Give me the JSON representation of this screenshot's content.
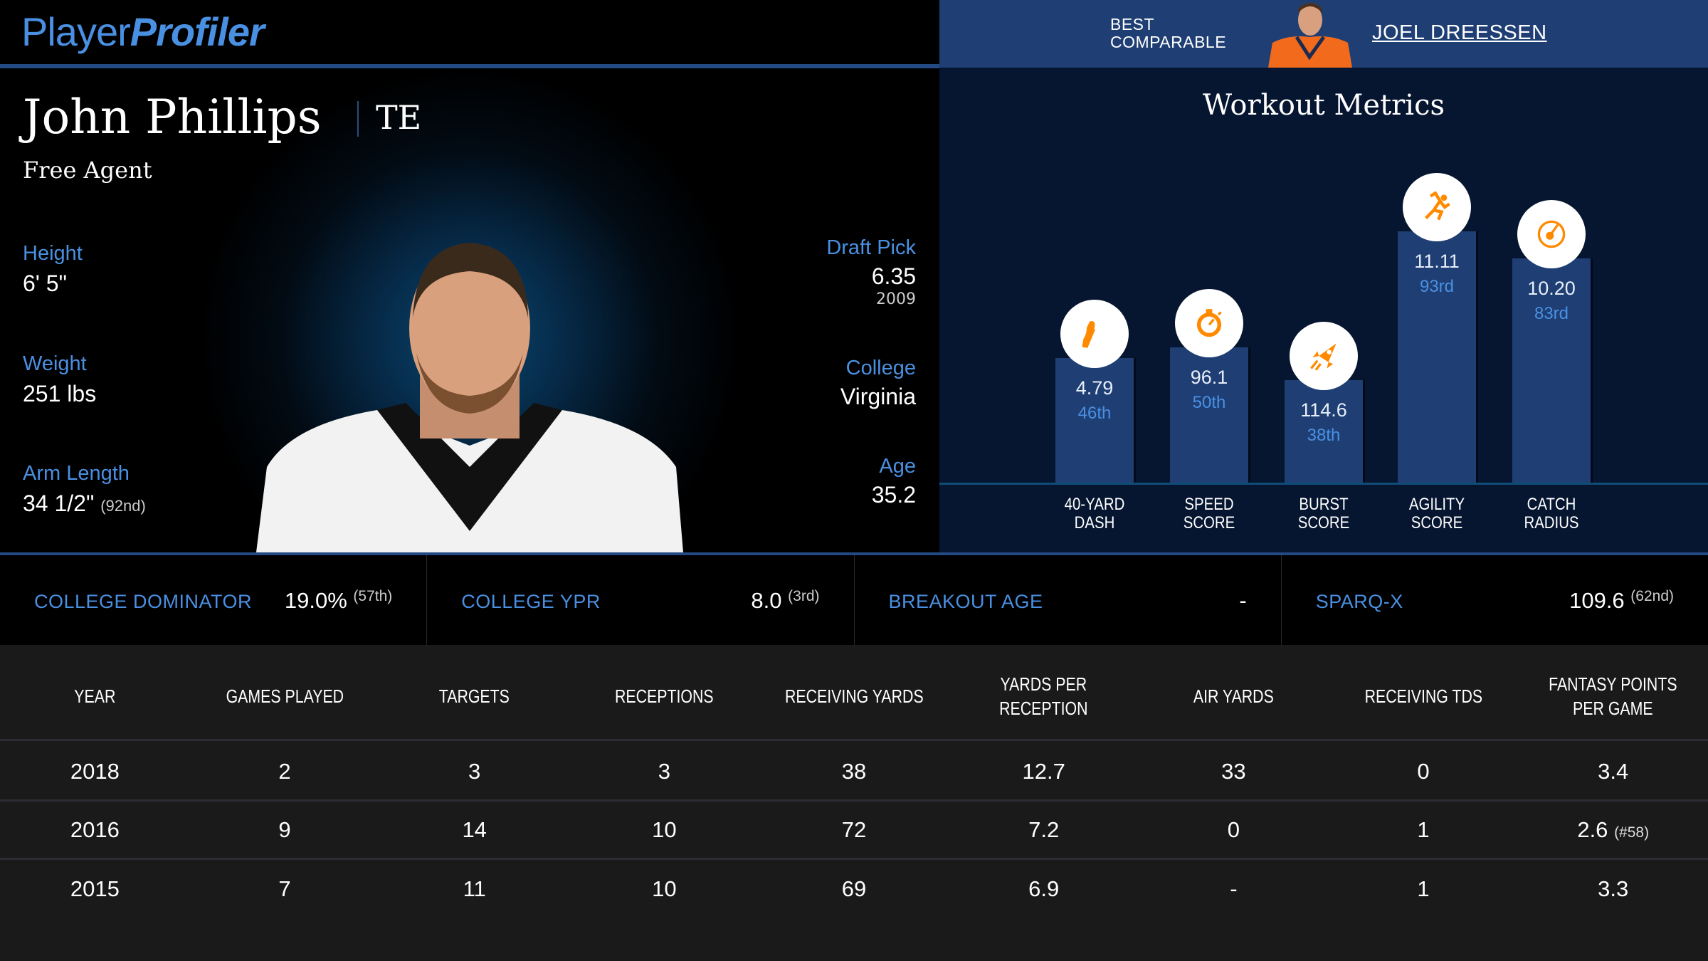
{
  "logo": {
    "part1": "Player",
    "part2": "Profiler"
  },
  "comparable": {
    "label_line1": "BEST",
    "label_line2": "COMPARABLE",
    "name": "JOEL DREESSEN"
  },
  "player": {
    "name": "John Phillips",
    "position": "TE",
    "team": "Free Agent"
  },
  "left_attrs": [
    {
      "label": "Height",
      "value": "6' 5\"",
      "extra": ""
    },
    {
      "label": "Weight",
      "value": "251 lbs",
      "extra": ""
    },
    {
      "label": "Arm Length",
      "value": "34 1/2\"",
      "extra": "(92nd)"
    }
  ],
  "right_attrs": [
    {
      "label": "Draft Pick",
      "value": "6.35",
      "extra": "2009"
    },
    {
      "label": "College",
      "value": "Virginia",
      "extra": ""
    },
    {
      "label": "Age",
      "value": "35.2",
      "extra": ""
    }
  ],
  "workout": {
    "title": "Workout Metrics",
    "accent": "#ff8a00",
    "metrics": [
      {
        "label1": "40-YARD",
        "label2": "DASH",
        "value": "4.79",
        "pct_label": "46th",
        "percentile": 46,
        "icon": "shoe-icon"
      },
      {
        "label1": "SPEED",
        "label2": "SCORE",
        "value": "96.1",
        "pct_label": "50th",
        "percentile": 50,
        "icon": "stopwatch-icon"
      },
      {
        "label1": "BURST",
        "label2": "SCORE",
        "value": "114.6",
        "pct_label": "38th",
        "percentile": 38,
        "icon": "rocket-icon"
      },
      {
        "label1": "AGILITY",
        "label2": "SCORE",
        "value": "11.11",
        "pct_label": "93rd",
        "percentile": 93,
        "icon": "runner-icon"
      },
      {
        "label1": "CATCH",
        "label2": "RADIUS",
        "value": "10.20",
        "pct_label": "83rd",
        "percentile": 83,
        "icon": "target-icon"
      }
    ]
  },
  "stats": [
    {
      "label": "COLLEGE DOMINATOR",
      "value": "19.0%",
      "rank": "(57th)"
    },
    {
      "label": "COLLEGE YPR",
      "value": "8.0",
      "rank": "(3rd)"
    },
    {
      "label": "BREAKOUT AGE",
      "value": "-",
      "rank": ""
    },
    {
      "label": "SPARQ-X",
      "value": "109.6",
      "rank": "(62nd)"
    }
  ],
  "table": {
    "headers": [
      "YEAR",
      "GAMES PLAYED",
      "TARGETS",
      "RECEPTIONS",
      "RECEIVING YARDS",
      "YARDS PER RECEPTION",
      "AIR YARDS",
      "RECEIVING TDS",
      "FANTASY POINTS PER GAME"
    ],
    "rows": [
      [
        "2018",
        "2",
        "3",
        "3",
        "38",
        "12.7",
        "33",
        "0",
        "3.4",
        ""
      ],
      [
        "2016",
        "9",
        "14",
        "10",
        "72",
        "7.2",
        "0",
        "1",
        "2.6",
        "(#58)"
      ],
      [
        "2015",
        "7",
        "11",
        "10",
        "69",
        "6.9",
        "-",
        "1",
        "3.3",
        ""
      ]
    ]
  }
}
